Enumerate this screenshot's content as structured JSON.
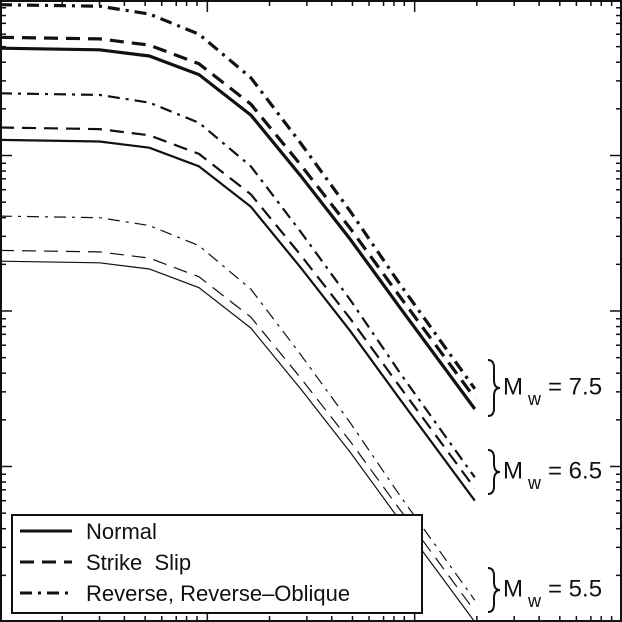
{
  "chart_data": {
    "type": "line",
    "x": [
      0,
      0.48,
      0.72,
      0.96,
      1.21,
      1.45,
      1.69,
      1.93,
      2.29
    ],
    "xlim": [
      0,
      3
    ],
    "ylim": [
      0,
      4
    ],
    "xticks": [
      1,
      2
    ],
    "yticks": [
      1,
      2,
      3
    ],
    "xminorticks": [
      0.3,
      0.48,
      0.6,
      0.7,
      0.78,
      0.85,
      0.9,
      0.95,
      1.3,
      1.48,
      1.6,
      1.7,
      1.78,
      1.85,
      1.9,
      1.95,
      2.3,
      2.48,
      2.6,
      2.7,
      2.78,
      2.85,
      2.9,
      2.95
    ],
    "yminorticks": [
      0.3,
      0.48,
      0.6,
      0.7,
      0.78,
      0.85,
      0.9,
      0.95,
      1.3,
      1.48,
      1.6,
      1.7,
      1.78,
      1.85,
      1.9,
      1.95,
      2.3,
      2.48,
      2.6,
      2.7,
      2.78,
      2.85,
      2.9,
      2.95,
      3.3,
      3.48,
      3.6,
      3.7,
      3.78,
      3.85,
      3.9,
      3.95
    ],
    "color": "#111111",
    "legend_position": "lower left",
    "legend": [
      {
        "label": "Normal",
        "style": "solid"
      },
      {
        "label": "Strike  Slip",
        "style": "dashed"
      },
      {
        "label": "Reverse, Reverse–Oblique",
        "style": "dashdot"
      }
    ],
    "annotations": [
      {
        "symbol": "M",
        "subscript": "w",
        "text": "= 7.5"
      },
      {
        "symbol": "M",
        "subscript": "w",
        "text": "= 6.5"
      },
      {
        "symbol": "M",
        "subscript": "w",
        "text": "= 5.5"
      }
    ],
    "series": [
      {
        "style": "solid",
        "width": 3.2,
        "values": [
          3.69,
          3.68,
          3.64,
          3.52,
          3.26,
          2.87,
          2.46,
          2.02,
          1.37
        ]
      },
      {
        "style": "dashed",
        "width": 3.2,
        "values": [
          3.76,
          3.75,
          3.71,
          3.59,
          3.33,
          2.94,
          2.53,
          2.09,
          1.44
        ]
      },
      {
        "style": "dashdot",
        "width": 3.2,
        "values": [
          3.97,
          3.96,
          3.91,
          3.78,
          3.5,
          3.08,
          2.64,
          2.17,
          1.5
        ]
      },
      {
        "style": "solid",
        "width": 2.2,
        "values": [
          3.1,
          3.09,
          3.05,
          2.93,
          2.67,
          2.28,
          1.87,
          1.43,
          0.78
        ]
      },
      {
        "style": "dashed",
        "width": 2.2,
        "values": [
          3.18,
          3.17,
          3.13,
          3.01,
          2.75,
          2.36,
          1.95,
          1.51,
          0.86
        ]
      },
      {
        "style": "dashdot",
        "width": 2.2,
        "values": [
          3.4,
          3.39,
          3.34,
          3.21,
          2.93,
          2.51,
          2.07,
          1.6,
          0.93
        ]
      },
      {
        "style": "solid",
        "width": 1.2,
        "values": [
          2.32,
          2.31,
          2.27,
          2.15,
          1.89,
          1.5,
          1.09,
          0.65,
          0.0
        ]
      },
      {
        "style": "dashed",
        "width": 1.2,
        "values": [
          2.39,
          2.38,
          2.34,
          2.22,
          1.96,
          1.57,
          1.16,
          0.72,
          0.07
        ]
      },
      {
        "style": "dashdot",
        "width": 1.2,
        "values": [
          2.61,
          2.6,
          2.55,
          2.42,
          2.14,
          1.72,
          1.28,
          0.81,
          0.14
        ]
      }
    ]
  }
}
